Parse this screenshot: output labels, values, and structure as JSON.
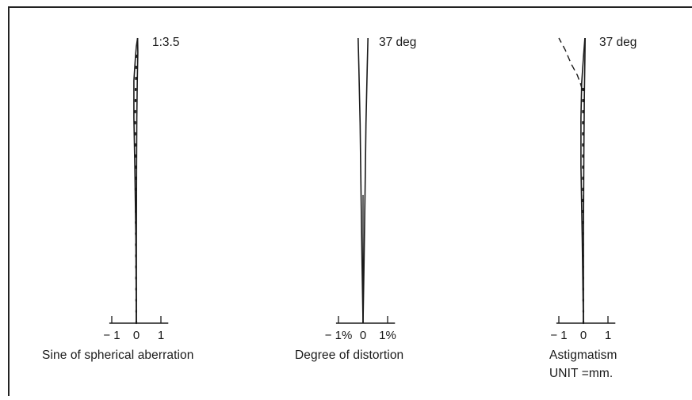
{
  "chart_data": [
    {
      "type": "line",
      "caption": "Sine of spherical aberration",
      "top_label": "1:3.5",
      "ticks": [
        {
          "v": -1,
          "label": "− 1"
        },
        {
          "v": 0,
          "label": "0"
        },
        {
          "v": 1,
          "label": "1"
        }
      ],
      "xlim": [
        -1.1,
        1.3
      ],
      "ylim": [
        0,
        1
      ],
      "series": [
        {
          "style": "solid",
          "x": [
            0,
            -0.02,
            -0.06,
            -0.1,
            -0.1,
            -0.04,
            0.0,
            0.05
          ],
          "y": [
            0,
            0.3,
            0.55,
            0.72,
            0.85,
            0.93,
            0.97,
            1.0
          ]
        },
        {
          "style": "solid",
          "x": [
            0,
            0.0,
            0.01,
            0.02,
            0.04,
            0.06,
            0.05
          ],
          "y": [
            0,
            0.3,
            0.55,
            0.72,
            0.85,
            0.95,
            1.0
          ]
        },
        {
          "style": "dotted",
          "x": [
            0,
            -0.02,
            -0.04,
            -0.05,
            -0.02,
            0.01
          ],
          "y": [
            0,
            0.3,
            0.55,
            0.72,
            0.85,
            0.95
          ]
        }
      ]
    },
    {
      "type": "line",
      "caption": "Degree of distortion",
      "top_label": "37 deg",
      "ticks": [
        {
          "v": -1,
          "label": "− 1%"
        },
        {
          "v": 0,
          "label": "0"
        },
        {
          "v": 1,
          "label": "1%"
        }
      ],
      "xlim": [
        -1.1,
        1.3
      ],
      "ylim": [
        0,
        1
      ],
      "series": [
        {
          "style": "solid",
          "x": [
            0,
            -0.04,
            -0.08,
            -0.12,
            -0.17,
            -0.2
          ],
          "y": [
            0,
            0.2,
            0.45,
            0.7,
            0.9,
            1.0
          ]
        },
        {
          "style": "solid",
          "x": [
            0,
            0.04,
            0.08,
            0.12,
            0.17,
            0.2
          ],
          "y": [
            0,
            0.2,
            0.45,
            0.7,
            0.9,
            1.0
          ]
        }
      ]
    },
    {
      "type": "line",
      "caption": "Astigmatism",
      "caption2": "UNIT =mm.",
      "top_label": "37 deg",
      "ticks": [
        {
          "v": -1,
          "label": "− 1"
        },
        {
          "v": 0,
          "label": "0"
        },
        {
          "v": 1,
          "label": "1"
        }
      ],
      "xlim": [
        -1.1,
        1.3
      ],
      "ylim": [
        0,
        1
      ],
      "series": [
        {
          "style": "solid",
          "x": [
            0,
            -0.05,
            -0.1,
            -0.1,
            -0.07,
            0.0,
            0.06
          ],
          "y": [
            0,
            0.3,
            0.55,
            0.72,
            0.84,
            0.93,
            1.0
          ]
        },
        {
          "style": "solid",
          "x": [
            0,
            0.0,
            0.02,
            0.04,
            0.06,
            0.07
          ],
          "y": [
            0,
            0.3,
            0.6,
            0.8,
            0.93,
            1.0
          ]
        },
        {
          "style": "dashed",
          "x": [
            -0.05,
            -0.12,
            -0.25,
            -0.5,
            -0.75,
            -1.0
          ],
          "y": [
            0.82,
            0.84,
            0.87,
            0.91,
            0.96,
            1.0
          ]
        },
        {
          "style": "dotted",
          "x": [
            0,
            -0.02,
            -0.02,
            -0.01
          ],
          "y": [
            0,
            0.4,
            0.72,
            0.85
          ]
        }
      ]
    }
  ]
}
